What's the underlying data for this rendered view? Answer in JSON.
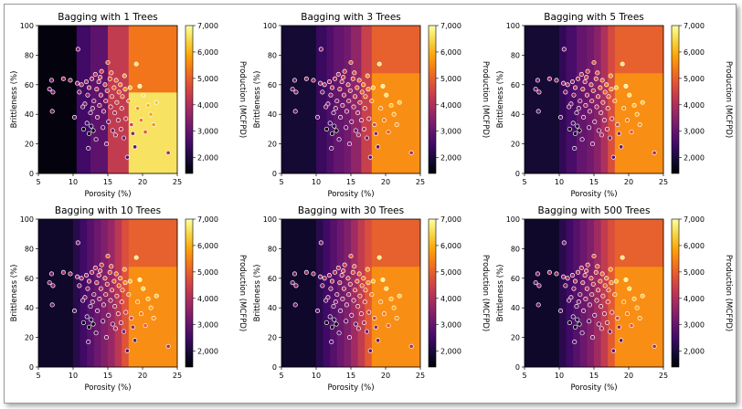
{
  "figure": {
    "colormap": "inferno",
    "marker_edge_color": "#ffffff"
  },
  "chart_data": [
    {
      "type": "heatmap",
      "title": "Bagging with 1 Trees",
      "xlabel": "Porosity (%)",
      "ylabel": "Brittleness (%)",
      "xlim": [
        5,
        25
      ],
      "ylim": [
        0,
        100
      ],
      "x_ticks": [
        "5",
        "10",
        "15",
        "20",
        "25"
      ],
      "y_ticks": [
        "0",
        "20",
        "40",
        "60",
        "80",
        "100"
      ],
      "colorbar": {
        "label": "Production (MCFPD)",
        "range": [
          1400,
          7000
        ],
        "ticks": [
          "2,000",
          "3,000",
          "4,000",
          "5,000",
          "6,000",
          "7,000"
        ]
      },
      "x_splits": [
        5,
        10.5,
        12.5,
        15,
        18,
        25
      ],
      "y_splits": [
        0,
        55,
        100
      ],
      "grid": [
        [
          1500,
          2500,
          2900,
          4300,
          6600
        ],
        [
          1500,
          2500,
          2900,
          4300,
          5300
        ]
      ]
    },
    {
      "type": "heatmap",
      "title": "Bagging with 3 Trees",
      "xlabel": "Porosity (%)",
      "ylabel": "Brittleness (%)",
      "xlim": [
        5,
        25
      ],
      "ylim": [
        0,
        100
      ],
      "x_ticks": [
        "5",
        "10",
        "15",
        "20",
        "25"
      ],
      "y_ticks": [
        "0",
        "20",
        "40",
        "60",
        "80",
        "100"
      ],
      "colorbar": {
        "label": "Production (MCFPD)",
        "range": [
          1400,
          7000
        ],
        "ticks": [
          "2,000",
          "3,000",
          "4,000",
          "5,000",
          "6,000",
          "7,000"
        ]
      },
      "x_splits": [
        5,
        10,
        11.5,
        12.5,
        14,
        15,
        16.5,
        18,
        25
      ],
      "y_splits": [
        0,
        68,
        100
      ],
      "grid": [
        [
          1900,
          2400,
          2700,
          3000,
          3200,
          3600,
          4400,
          5600
        ],
        [
          1900,
          2400,
          2700,
          3000,
          3200,
          3600,
          4400,
          5000
        ]
      ]
    },
    {
      "type": "heatmap",
      "title": "Bagging with 5 Trees",
      "xlabel": "Porosity (%)",
      "ylabel": "Brittleness (%)",
      "xlim": [
        5,
        25
      ],
      "ylim": [
        0,
        100
      ],
      "x_ticks": [
        "5",
        "10",
        "15",
        "20",
        "25"
      ],
      "y_ticks": [
        "0",
        "20",
        "40",
        "60",
        "80",
        "100"
      ],
      "colorbar": {
        "label": "Production (MCFPD)",
        "range": [
          1400,
          7000
        ],
        "ticks": [
          "2,000",
          "3,000",
          "4,000",
          "5,000",
          "6,000",
          "7,000"
        ]
      },
      "x_splits": [
        5,
        10,
        11,
        12.5,
        14,
        15,
        16,
        17,
        18,
        25
      ],
      "y_splits": [
        0,
        68,
        100
      ],
      "grid": [
        [
          1900,
          2300,
          2600,
          3000,
          3200,
          3500,
          4000,
          4700,
          5600
        ],
        [
          1900,
          2300,
          2600,
          3000,
          3200,
          3500,
          4000,
          4600,
          5000
        ]
      ]
    },
    {
      "type": "heatmap",
      "title": "Bagging with 10 Trees",
      "xlabel": "Porosity (%)",
      "ylabel": "Brittleness (%)",
      "xlim": [
        5,
        25
      ],
      "ylim": [
        0,
        100
      ],
      "x_ticks": [
        "5",
        "10",
        "15",
        "20",
        "25"
      ],
      "y_ticks": [
        "0",
        "20",
        "40",
        "60",
        "80",
        "100"
      ],
      "colorbar": {
        "label": "Production (MCFPD)",
        "range": [
          1400,
          7000
        ],
        "ticks": [
          "2,000",
          "3,000",
          "4,000",
          "5,000",
          "6,000",
          "7,000"
        ]
      },
      "x_splits": [
        5,
        10,
        11,
        12,
        13,
        14,
        15,
        16,
        17,
        18,
        25
      ],
      "y_splits": [
        0,
        68,
        100
      ],
      "grid": [
        [
          1800,
          2200,
          2500,
          2800,
          3100,
          3400,
          3700,
          4200,
          4800,
          5600
        ],
        [
          1800,
          2200,
          2500,
          2800,
          3100,
          3400,
          3700,
          4200,
          4700,
          5000
        ]
      ]
    },
    {
      "type": "heatmap",
      "title": "Bagging with 30 Trees",
      "xlabel": "Porosity (%)",
      "ylabel": "Brittleness (%)",
      "xlim": [
        5,
        25
      ],
      "ylim": [
        0,
        100
      ],
      "x_ticks": [
        "5",
        "10",
        "15",
        "20",
        "25"
      ],
      "y_ticks": [
        "0",
        "20",
        "40",
        "60",
        "80",
        "100"
      ],
      "colorbar": {
        "label": "Production (MCFPD)",
        "range": [
          1400,
          7000
        ],
        "ticks": [
          "2,000",
          "3,000",
          "4,000",
          "5,000",
          "6,000",
          "7,000"
        ]
      },
      "x_splits": [
        5,
        10,
        11,
        12,
        13,
        14,
        15,
        16,
        17,
        18,
        25
      ],
      "y_splits": [
        0,
        68,
        100
      ],
      "grid": [
        [
          1800,
          2200,
          2500,
          2800,
          3100,
          3400,
          3800,
          4300,
          4900,
          5600
        ],
        [
          1800,
          2200,
          2500,
          2800,
          3100,
          3400,
          3800,
          4300,
          4700,
          5000
        ]
      ]
    },
    {
      "type": "heatmap",
      "title": "Bagging with 500 Trees",
      "xlabel": "Porosity (%)",
      "ylabel": "Brittleness (%)",
      "xlim": [
        5,
        25
      ],
      "ylim": [
        0,
        100
      ],
      "x_ticks": [
        "5",
        "10",
        "15",
        "20",
        "25"
      ],
      "y_ticks": [
        "0",
        "20",
        "40",
        "60",
        "80",
        "100"
      ],
      "colorbar": {
        "label": "Production (MCFPD)",
        "range": [
          1400,
          7000
        ],
        "ticks": [
          "2,000",
          "3,000",
          "4,000",
          "5,000",
          "6,000",
          "7,000"
        ]
      },
      "x_splits": [
        5,
        10,
        11,
        12,
        13,
        14,
        15,
        16,
        17,
        18,
        25
      ],
      "y_splits": [
        0,
        68,
        100
      ],
      "grid": [
        [
          1800,
          2200,
          2500,
          2800,
          3100,
          3400,
          3800,
          4300,
          4900,
          5600
        ],
        [
          1800,
          2200,
          2500,
          2800,
          3100,
          3400,
          3800,
          4300,
          4700,
          5000
        ]
      ]
    }
  ],
  "scatter_points": [
    [
      6.6,
      57,
      3200
    ],
    [
      6.9,
      63,
      3300
    ],
    [
      7.1,
      55,
      3400
    ],
    [
      7.0,
      42,
      3100
    ],
    [
      8.6,
      64,
      3800
    ],
    [
      9.6,
      63,
      3700
    ],
    [
      10.2,
      38,
      3000
    ],
    [
      10.7,
      84,
      3300
    ],
    [
      10.6,
      61,
      3600
    ],
    [
      10.9,
      55,
      3400
    ],
    [
      11.2,
      60,
      3900
    ],
    [
      11.5,
      30,
      1500
    ],
    [
      11.7,
      47,
      3300
    ],
    [
      11.9,
      62,
      3800
    ],
    [
      12.1,
      53,
      3600
    ],
    [
      12.3,
      58,
      4100
    ],
    [
      12.0,
      34,
      2500
    ],
    [
      12.3,
      27,
      1600
    ],
    [
      12.6,
      32,
      2100
    ],
    [
      12.9,
      29,
      1500
    ],
    [
      12.5,
      41,
      3000
    ],
    [
      12.8,
      44,
      3300
    ],
    [
      13.0,
      49,
      3500
    ],
    [
      13.2,
      67,
      4100
    ],
    [
      13.4,
      57,
      4300
    ],
    [
      13.5,
      38,
      3200
    ],
    [
      13.7,
      62,
      3900
    ],
    [
      13.8,
      46,
      3700
    ],
    [
      14.0,
      53,
      4100
    ],
    [
      14.1,
      69,
      4400
    ],
    [
      14.3,
      31,
      2900
    ],
    [
      14.4,
      42,
      3500
    ],
    [
      14.6,
      60,
      4500
    ],
    [
      14.7,
      49,
      4000
    ],
    [
      14.9,
      56,
      4300
    ],
    [
      15.0,
      75,
      4900
    ],
    [
      15.1,
      35,
      3300
    ],
    [
      15.3,
      64,
      4700
    ],
    [
      15.4,
      45,
      4000
    ],
    [
      15.6,
      52,
      4500
    ],
    [
      15.7,
      29,
      3100
    ],
    [
      15.9,
      58,
      4900
    ],
    [
      16.0,
      41,
      3900
    ],
    [
      16.2,
      63,
      5100
    ],
    [
      16.3,
      48,
      4600
    ],
    [
      16.5,
      36,
      3800
    ],
    [
      16.6,
      55,
      5000
    ],
    [
      16.8,
      60,
      5300
    ],
    [
      17.0,
      44,
      4400
    ],
    [
      17.1,
      52,
      5000
    ],
    [
      17.3,
      24,
      3200
    ],
    [
      17.5,
      57,
      5600
    ],
    [
      17.6,
      37,
      4200
    ],
    [
      17.8,
      11,
      2800
    ],
    [
      18.0,
      49,
      5500
    ],
    [
      18.2,
      58,
      6200
    ],
    [
      18.4,
      33,
      4500
    ],
    [
      18.6,
      27,
      3600
    ],
    [
      18.9,
      18,
      3000
    ],
    [
      19.1,
      74,
      6700
    ],
    [
      19.3,
      44,
      5600
    ],
    [
      19.6,
      59,
      6800
    ],
    [
      19.8,
      36,
      5300
    ],
    [
      20.1,
      53,
      6600
    ],
    [
      20.4,
      28,
      4900
    ],
    [
      20.8,
      46,
      6100
    ],
    [
      21.2,
      40,
      5900
    ],
    [
      21.6,
      33,
      5700
    ],
    [
      22.0,
      48,
      6300
    ],
    [
      23.7,
      14,
      3900
    ],
    [
      12.2,
      17,
      2700
    ],
    [
      13.3,
      23,
      2900
    ],
    [
      14.8,
      20,
      3300
    ],
    [
      16.1,
      26,
      3900
    ],
    [
      11.4,
      45,
      3200
    ],
    [
      13.9,
      65,
      4400
    ],
    [
      15.5,
      68,
      4800
    ],
    [
      17.4,
      66,
      5600
    ],
    [
      12.7,
      64,
      4000
    ],
    [
      16.9,
      30,
      4000
    ]
  ]
}
